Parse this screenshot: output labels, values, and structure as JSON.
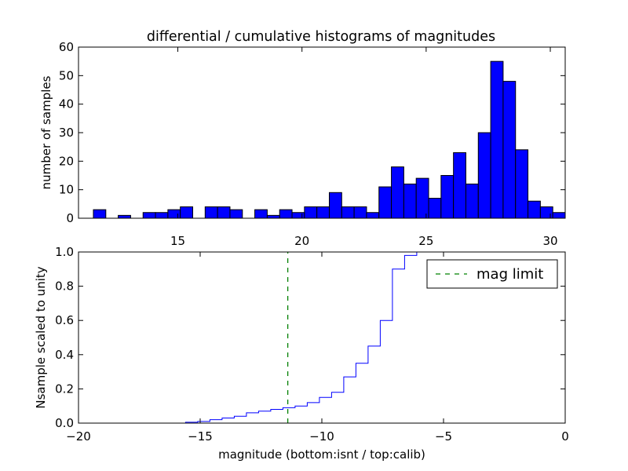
{
  "chart_data": [
    {
      "type": "bar",
      "title": "differential / cumulative histograms of magnitudes",
      "ylabel": "number of samples",
      "xlim": [
        11,
        30.6
      ],
      "ylim": [
        0,
        60
      ],
      "xticks": [
        15,
        20,
        25,
        30
      ],
      "yticks": [
        0,
        10,
        20,
        30,
        40,
        50,
        60
      ],
      "xtick_position": "bottom",
      "bin_left_edges": [
        11.6,
        12.1,
        12.6,
        13.1,
        13.6,
        14.1,
        14.6,
        15.1,
        15.6,
        16.1,
        16.6,
        17.1,
        17.6,
        18.1,
        18.6,
        19.1,
        19.6,
        20.1,
        20.6,
        21.1,
        21.6,
        22.1,
        22.6,
        23.1,
        23.6,
        24.1,
        24.6,
        25.1,
        25.6,
        26.1,
        26.6,
        27.1,
        27.6,
        28.1,
        28.6,
        29.1,
        29.6,
        30.1
      ],
      "bin_width": 0.5,
      "values": [
        3,
        0,
        1,
        0,
        2,
        2,
        3,
        4,
        0,
        4,
        4,
        3,
        0,
        3,
        1,
        3,
        2,
        4,
        4,
        9,
        4,
        4,
        2,
        11,
        18,
        12,
        14,
        7,
        15,
        23,
        12,
        30,
        55,
        48,
        24,
        6,
        4,
        2
      ],
      "bar_color": "#0000ff",
      "grid": false
    },
    {
      "type": "line",
      "ylabel": "Nsample scaled to unity",
      "xlabel": "magnitude (bottom:isnt / top:calib)",
      "xlim": [
        -20,
        0
      ],
      "ylim": [
        0,
        1.0
      ],
      "xticks": [
        -20,
        -15,
        -10,
        -5,
        0
      ],
      "yticks": [
        0.0,
        0.2,
        0.4,
        0.6,
        0.8,
        1.0
      ],
      "ytick_labels": [
        "0.0",
        "0.2",
        "0.4",
        "0.6",
        "0.8",
        "1.0"
      ],
      "xtick_labels": [
        "−20",
        "−15",
        "−10",
        "−5",
        "0"
      ],
      "series": [
        {
          "style": "step",
          "color": "#0000ff",
          "x": [
            -19.0,
            -15.6,
            -15.1,
            -14.6,
            -14.1,
            -13.6,
            -13.1,
            -12.6,
            -12.1,
            -11.6,
            -11.1,
            -10.6,
            -10.1,
            -9.6,
            -9.1,
            -8.6,
            -8.1,
            -7.6,
            -7.1,
            -6.6,
            -6.1,
            -5.6
          ],
          "y": [
            0.0,
            0.005,
            0.01,
            0.02,
            0.03,
            0.04,
            0.06,
            0.07,
            0.08,
            0.09,
            0.1,
            0.12,
            0.15,
            0.18,
            0.27,
            0.35,
            0.45,
            0.6,
            0.9,
            0.98,
            1.0,
            1.0
          ]
        },
        {
          "name": "mag limit",
          "style": "dashed-vertical",
          "color": "#008000",
          "x_value": -11.4
        }
      ],
      "legend": {
        "placement": "top-right",
        "entries": [
          "mag limit"
        ]
      },
      "grid": false
    }
  ]
}
